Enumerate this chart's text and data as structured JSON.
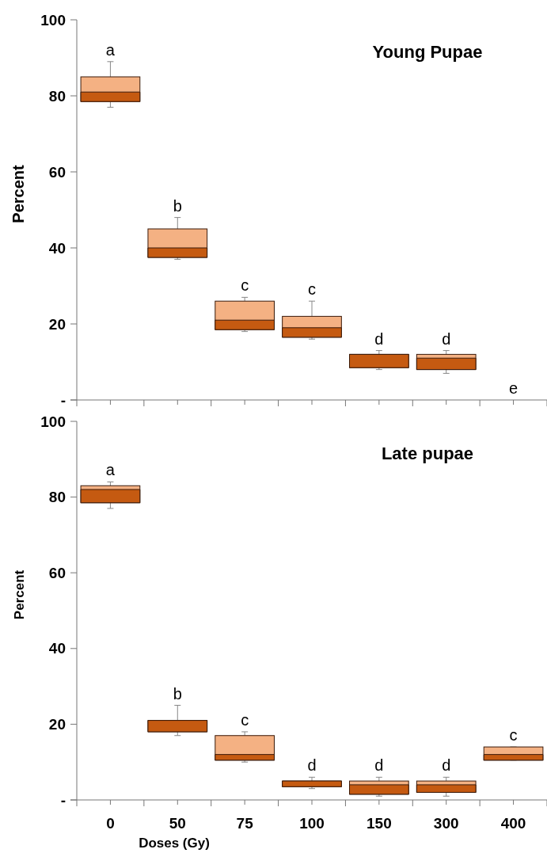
{
  "chart_data": [
    {
      "type": "box",
      "title": "Young Pupae",
      "ylabel": "Percent",
      "categories": [
        "0",
        "50",
        "75",
        "100",
        "150",
        "300",
        "400"
      ],
      "tick_labels": "y",
      "ylim": [
        0,
        100
      ],
      "yticks": [
        {
          "value": 0,
          "label": "-"
        },
        20,
        40,
        60,
        80,
        100
      ],
      "series": [
        {
          "color": "#c55a11",
          "colors": [
            "#f4b183",
            "#f4b183",
            "#f4b183",
            "#f4b183",
            "#f4b183",
            "#f4b183",
            null
          ],
          "boxes": [
            {
              "low": 77,
              "q1": 78.5,
              "median": 81,
              "q3": 85,
              "high": 89
            },
            {
              "low": 37,
              "q1": 37.5,
              "median": 40,
              "q3": 45,
              "high": 48
            },
            {
              "low": 18,
              "q1": 18.5,
              "median": 21,
              "q3": 26,
              "high": 27
            },
            {
              "low": 16,
              "q1": 16.5,
              "median": 19,
              "q3": 22,
              "high": 26
            },
            {
              "low": 8,
              "q1": 8.5,
              "median": 12,
              "q3": 12,
              "high": 13
            },
            {
              "low": 7,
              "q1": 8,
              "median": 11,
              "q3": 12,
              "high": 13
            },
            null
          ]
        }
      ],
      "annotations": [
        "a",
        "b",
        "c",
        "c",
        "d",
        "d",
        "e"
      ]
    },
    {
      "type": "box",
      "title": "Late pupae",
      "ylabel": "Percent",
      "xlabel": "Doses (Gy)",
      "categories": [
        "0",
        "50",
        "75",
        "100",
        "150",
        "300",
        "400"
      ],
      "ylim": [
        0,
        100
      ],
      "yticks": [
        {
          "value": 0,
          "label": "-"
        },
        20,
        40,
        60,
        80,
        100
      ],
      "series": [
        {
          "color": "#c55a11",
          "colors": [
            "#f4b183",
            "#f4b183",
            "#f4b183",
            "#f4b183",
            "#f4b183",
            "#f4b183",
            "#f4b183"
          ],
          "boxes": [
            {
              "low": 77,
              "q1": 78.5,
              "median": 82,
              "q3": 83,
              "high": 84
            },
            {
              "low": 17,
              "q1": 18,
              "median": 21,
              "q3": 21,
              "high": 25
            },
            {
              "low": 10,
              "q1": 10.5,
              "median": 12,
              "q3": 17,
              "high": 18
            },
            {
              "low": 3,
              "q1": 3.5,
              "median": 5,
              "q3": 5,
              "high": 6
            },
            {
              "low": 1,
              "q1": 1.5,
              "median": 4,
              "q3": 5,
              "high": 6
            },
            {
              "low": 1,
              "q1": 2,
              "median": 4,
              "q3": 5,
              "high": 6
            },
            {
              "low": 10.5,
              "q1": 10.5,
              "median": 12,
              "q3": 14,
              "high": 14
            }
          ]
        }
      ],
      "annotations": [
        "a",
        "b",
        "c",
        "d",
        "d",
        "d",
        "c"
      ]
    }
  ]
}
